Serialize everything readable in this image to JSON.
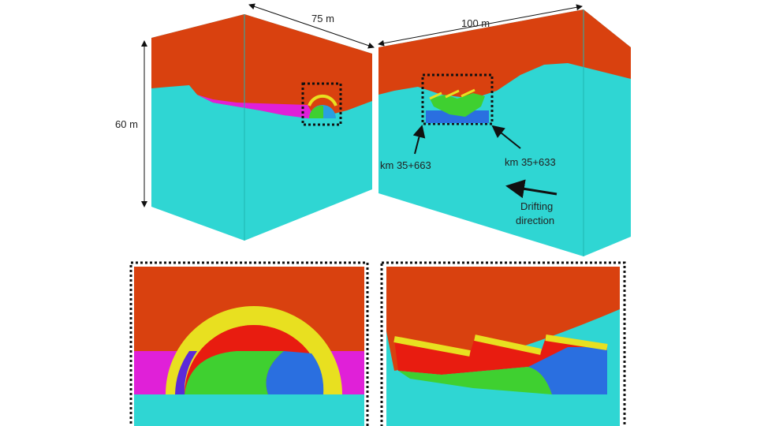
{
  "dimensions": {
    "left_width": "75 m",
    "right_width": "100 m",
    "height": "60 m"
  },
  "annotations": {
    "left_station": "km 35+663",
    "right_station": "km 35+633",
    "drifting": [
      "Drifting",
      "direction"
    ]
  }
}
